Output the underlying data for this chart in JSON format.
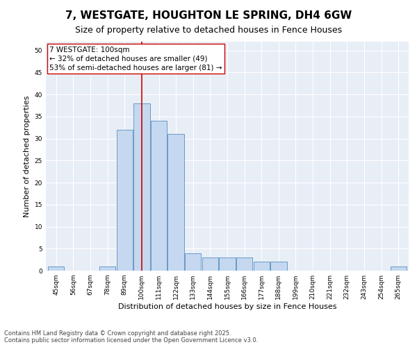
{
  "title": "7, WESTGATE, HOUGHTON LE SPRING, DH4 6GW",
  "subtitle": "Size of property relative to detached houses in Fence Houses",
  "xlabel": "Distribution of detached houses by size in Fence Houses",
  "ylabel": "Number of detached properties",
  "categories": [
    "45sqm",
    "56sqm",
    "67sqm",
    "78sqm",
    "89sqm",
    "100sqm",
    "111sqm",
    "122sqm",
    "133sqm",
    "144sqm",
    "155sqm",
    "166sqm",
    "177sqm",
    "188sqm",
    "199sqm",
    "210sqm",
    "221sqm",
    "232sqm",
    "243sqm",
    "254sqm",
    "265sqm"
  ],
  "values": [
    1,
    0,
    0,
    1,
    32,
    38,
    34,
    31,
    4,
    3,
    3,
    3,
    2,
    2,
    0,
    0,
    0,
    0,
    0,
    0,
    1
  ],
  "bar_color": "#c5d8f0",
  "bar_edge_color": "#5590c0",
  "vline_x_index": 5,
  "vline_color": "#cc0000",
  "annotation_text": "7 WESTGATE: 100sqm\n← 32% of detached houses are smaller (49)\n53% of semi-detached houses are larger (81) →",
  "annotation_box_color": "#ffffff",
  "annotation_box_edge": "#cc0000",
  "ylim": [
    0,
    52
  ],
  "yticks": [
    0,
    5,
    10,
    15,
    20,
    25,
    30,
    35,
    40,
    45,
    50
  ],
  "background_color": "#e8eef6",
  "grid_color": "#ffffff",
  "footer": "Contains HM Land Registry data © Crown copyright and database right 2025.\nContains public sector information licensed under the Open Government Licence v3.0.",
  "title_fontsize": 11,
  "subtitle_fontsize": 9,
  "xlabel_fontsize": 8,
  "ylabel_fontsize": 8,
  "tick_fontsize": 6.5,
  "annotation_fontsize": 7.5,
  "footer_fontsize": 6
}
